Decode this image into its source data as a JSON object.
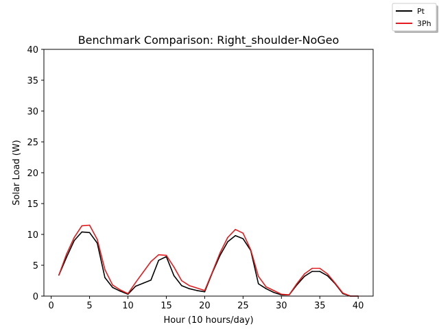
{
  "chart_data": {
    "type": "line",
    "title": "Benchmark Comparison: Right_shoulder-NoGeo",
    "xlabel": "Hour (10 hours/day)",
    "ylabel": "Solar Load (W)",
    "xlim": [
      -0.95,
      41.95
    ],
    "ylim": [
      0,
      40
    ],
    "xticks": [
      0,
      5,
      10,
      15,
      20,
      25,
      30,
      35,
      40
    ],
    "yticks": [
      0,
      5,
      10,
      15,
      20,
      25,
      30,
      35,
      40
    ],
    "grid": false,
    "legend_position": "top-right",
    "x": [
      1,
      2,
      3,
      4,
      5,
      6,
      7,
      8,
      9,
      10,
      11,
      12,
      13,
      14,
      15,
      16,
      17,
      18,
      19,
      20,
      21,
      22,
      23,
      24,
      25,
      26,
      27,
      28,
      29,
      30,
      31,
      32,
      33,
      34,
      35,
      36,
      37,
      38,
      39,
      40
    ],
    "series": [
      {
        "name": "Pt",
        "color": "#000000",
        "values": [
          3.4,
          6.3,
          9.0,
          10.4,
          10.3,
          8.6,
          3.0,
          1.4,
          0.8,
          0.3,
          1.6,
          2.1,
          2.6,
          5.8,
          6.4,
          3.3,
          1.7,
          1.2,
          0.9,
          0.7,
          3.8,
          6.6,
          8.8,
          9.8,
          9.3,
          7.4,
          2.0,
          1.2,
          0.6,
          0.2,
          0.2,
          1.8,
          3.2,
          4.0,
          4.0,
          3.3,
          2.0,
          0.4,
          0.0,
          0.0
        ]
      },
      {
        "name": "3Ph",
        "color": "#e41a1c",
        "values": [
          3.4,
          6.8,
          9.5,
          11.4,
          11.5,
          9.2,
          4.3,
          1.8,
          1.0,
          0.4,
          2.2,
          3.9,
          5.6,
          6.7,
          6.6,
          4.7,
          2.5,
          1.7,
          1.3,
          0.9,
          3.9,
          7.0,
          9.5,
          10.8,
          10.2,
          7.5,
          3.2,
          1.5,
          0.9,
          0.3,
          0.2,
          2.0,
          3.6,
          4.5,
          4.5,
          3.6,
          2.1,
          0.5,
          0.0,
          0.0
        ]
      }
    ]
  }
}
